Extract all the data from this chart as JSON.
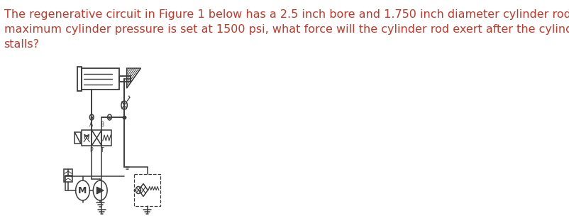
{
  "text_lines": [
    "The regenerative circuit in Figure 1 below has a 2.5 inch bore and 1.750 inch diameter cylinder rod. If the",
    "maximum cylinder pressure is set at 1500 psi, what force will the cylinder rod exert after the cylinder",
    "stalls?"
  ],
  "text_color": "#c0392b",
  "text_fontsize": 11.5,
  "bg_color": "#ffffff",
  "line_color": "#3a3a3a",
  "fig_width": 8.02,
  "fig_height": 3.11,
  "dpi": 100
}
